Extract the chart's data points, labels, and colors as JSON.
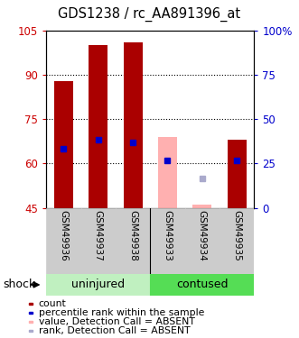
{
  "title": "GDS1238 / rc_AA891396_at",
  "samples": [
    "GSM49936",
    "GSM49937",
    "GSM49938",
    "GSM49933",
    "GSM49934",
    "GSM49935"
  ],
  "bar_bottom": 45,
  "ylim_left": [
    45,
    105
  ],
  "ylim_right": [
    0,
    100
  ],
  "yticks_left": [
    45,
    60,
    75,
    90,
    105
  ],
  "ytick_labels_left": [
    "45",
    "60",
    "75",
    "90",
    "105"
  ],
  "yticks_right": [
    0,
    25,
    50,
    75,
    100
  ],
  "ytick_labels_right": [
    "0",
    "25",
    "50",
    "75",
    "100%"
  ],
  "bar_tops": [
    88,
    100,
    101,
    null,
    null,
    68
  ],
  "bar_color": "#aa0000",
  "absent_bar_tops": [
    null,
    null,
    null,
    69,
    46,
    null
  ],
  "absent_bar_color": "#ffb0b0",
  "blue_marks": [
    65,
    68,
    67,
    61,
    null,
    61
  ],
  "absent_blue_marks": [
    null,
    null,
    null,
    null,
    55,
    null
  ],
  "blue_color": "#0000cc",
  "absent_blue_color": "#aaaacc",
  "grid_yticks": [
    60,
    75,
    90
  ],
  "bar_width": 0.55,
  "background_color": "#ffffff",
  "plot_bg": "#ffffff",
  "tick_label_color_left": "#cc0000",
  "tick_label_color_right": "#0000cc",
  "group_uninj_color": "#c0f0c0",
  "group_cont_color": "#55dd55",
  "legend_items": [
    {
      "label": "count",
      "color": "#aa0000"
    },
    {
      "label": "percentile rank within the sample",
      "color": "#0000cc"
    },
    {
      "label": "value, Detection Call = ABSENT",
      "color": "#ffb0b0"
    },
    {
      "label": "rank, Detection Call = ABSENT",
      "color": "#aaaacc"
    }
  ]
}
